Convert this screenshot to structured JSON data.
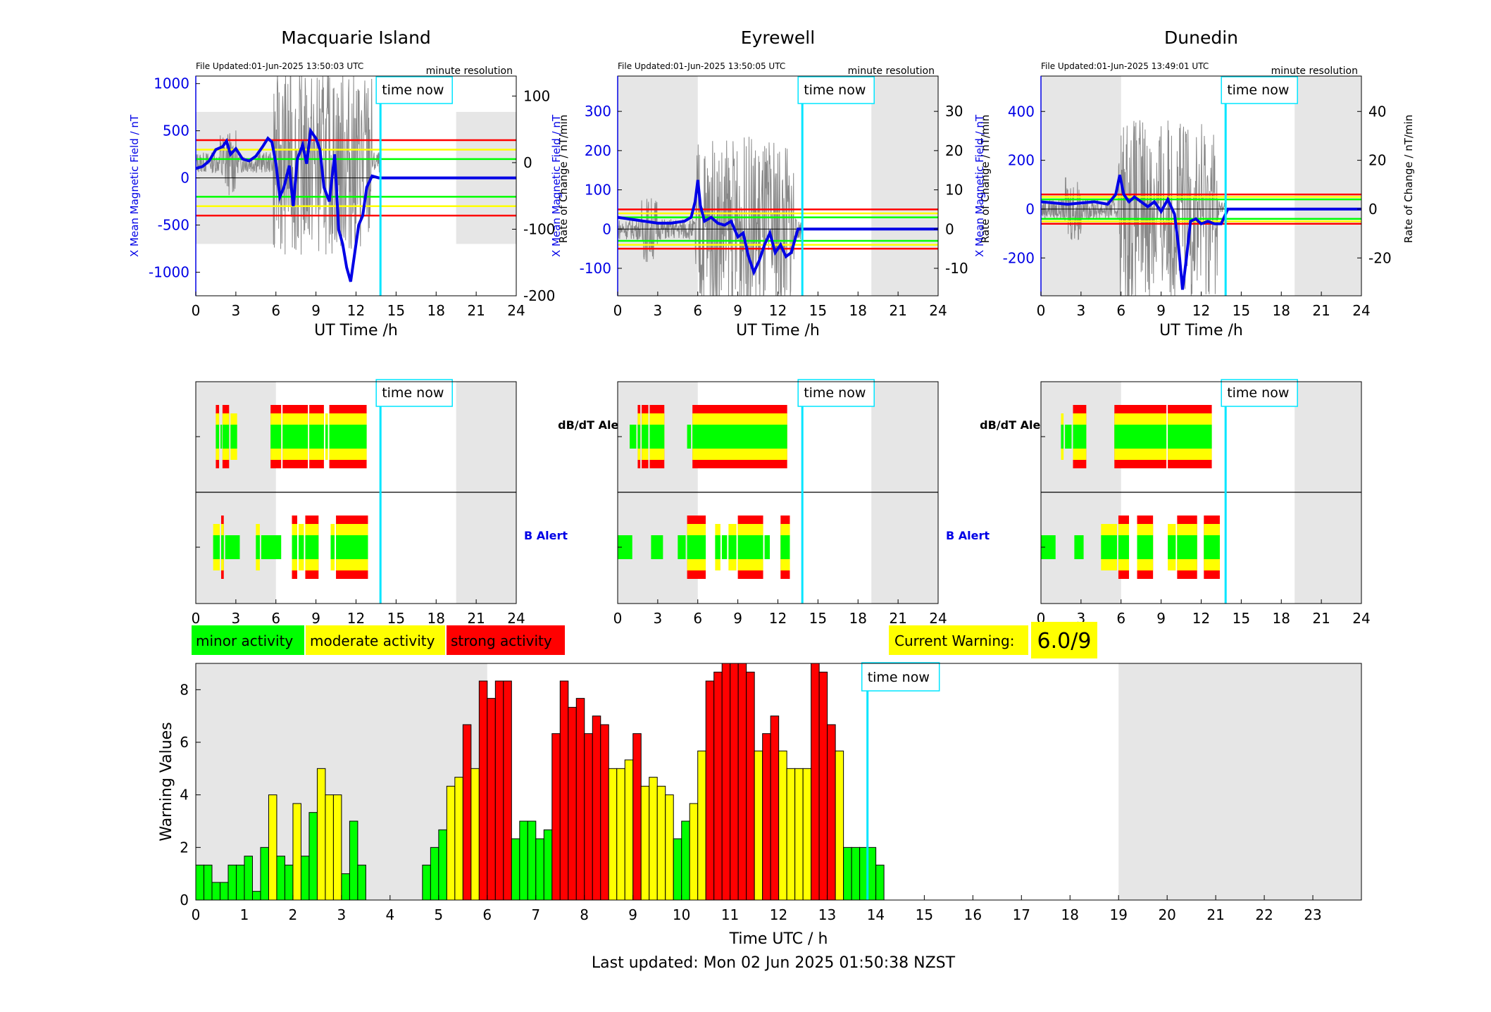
{
  "title_footer": "Last updated: Mon 02 Jun 2025 01:50:38 NZST",
  "time_now_label": "time now",
  "stations": [
    {
      "name": "Macquarie Island",
      "file_updated": "File Updated:01-Jun-2025 13:50:03 UTC",
      "resolution": "minute resolution",
      "ylabel_left": "X Mean Magnetic Field / nT",
      "ylabel_right": "Rate of Change / nT/min",
      "xlabel": "UT Time /h",
      "left_ylim": [
        -1250,
        1080
      ],
      "left_ticks": [
        -1000,
        -500,
        0,
        500,
        1000
      ],
      "right_ylim": [
        -200,
        130
      ],
      "right_ticks": [
        -200,
        -100,
        0,
        100
      ],
      "right_tick_labels": [
        "-200",
        "-100",
        "0",
        "100"
      ],
      "thresholds": {
        "green": 200,
        "yellow": 300,
        "red": 400
      },
      "dark_shade_hours": [
        [
          0,
          6
        ],
        [
          19.5,
          24
        ]
      ],
      "shade_band": [
        -700,
        700
      ],
      "x_mean_field": [
        [
          0,
          100
        ],
        [
          0.5,
          120
        ],
        [
          1,
          180
        ],
        [
          1.5,
          300
        ],
        [
          2,
          330
        ],
        [
          2.3,
          390
        ],
        [
          2.6,
          250
        ],
        [
          3,
          310
        ],
        [
          3.5,
          200
        ],
        [
          4,
          180
        ],
        [
          4.5,
          230
        ],
        [
          5,
          330
        ],
        [
          5.4,
          420
        ],
        [
          5.7,
          380
        ],
        [
          6,
          150
        ],
        [
          6.3,
          -200
        ],
        [
          6.6,
          -100
        ],
        [
          7,
          130
        ],
        [
          7.3,
          -300
        ],
        [
          7.6,
          200
        ],
        [
          8,
          350
        ],
        [
          8.3,
          150
        ],
        [
          8.6,
          500
        ],
        [
          9,
          420
        ],
        [
          9.3,
          300
        ],
        [
          9.6,
          -100
        ],
        [
          10,
          -250
        ],
        [
          10.4,
          250
        ],
        [
          10.7,
          -550
        ],
        [
          11,
          -700
        ],
        [
          11.3,
          -950
        ],
        [
          11.6,
          -1100
        ],
        [
          11.9,
          -800
        ],
        [
          12.2,
          -500
        ],
        [
          12.5,
          -400
        ],
        [
          12.8,
          -100
        ],
        [
          13.2,
          20
        ],
        [
          13.7,
          0
        ],
        [
          14,
          0
        ],
        [
          24,
          0
        ]
      ],
      "db_alert_segments": [
        [
          "1.5",
          "2",
          "red"
        ]
      ],
      "db_alert": [
        {
          "s": 1.5,
          "e": 1.85,
          "lvl": 3
        },
        {
          "s": 1.85,
          "e": 2.0,
          "lvl": 1
        },
        {
          "s": 2.0,
          "e": 2.6,
          "lvl": 3
        },
        {
          "s": 2.6,
          "e": 3.2,
          "lvl": 2
        },
        {
          "s": 5.6,
          "e": 6.5,
          "lvl": 3
        },
        {
          "s": 6.5,
          "e": 8.5,
          "lvl": 3
        },
        {
          "s": 8.5,
          "e": 9.7,
          "lvl": 3
        },
        {
          "s": 9.7,
          "e": 10.0,
          "lvl": 2
        },
        {
          "s": 10.0,
          "e": 12.9,
          "lvl": 3
        }
      ],
      "b_alert": [
        {
          "s": 1.3,
          "e": 1.9,
          "lvl": 2
        },
        {
          "s": 1.9,
          "e": 2.2,
          "lvl": 3
        },
        {
          "s": 2.2,
          "e": 3.4,
          "lvl": 1
        },
        {
          "s": 4.5,
          "e": 4.9,
          "lvl": 2
        },
        {
          "s": 4.9,
          "e": 6.5,
          "lvl": 1
        },
        {
          "s": 7.2,
          "e": 7.7,
          "lvl": 3
        },
        {
          "s": 7.7,
          "e": 8.2,
          "lvl": 2
        },
        {
          "s": 8.2,
          "e": 9.3,
          "lvl": 3
        },
        {
          "s": 10.1,
          "e": 10.5,
          "lvl": 2
        },
        {
          "s": 10.5,
          "e": 13.0,
          "lvl": 3
        }
      ]
    },
    {
      "name": "Eyrewell",
      "file_updated": "File Updated:01-Jun-2025 13:50:05 UTC",
      "resolution": "minute resolution",
      "ylabel_left": "X Mean Magnetic Field / nT",
      "ylabel_right": "Rate of Change / nT/min",
      "xlabel": "UT Time /h",
      "left_ylim": [
        -170,
        390
      ],
      "left_ticks": [
        -100,
        0,
        100,
        200,
        300
      ],
      "right_ylim": [
        -17,
        39
      ],
      "right_ticks": [
        -10,
        0,
        10,
        20,
        30
      ],
      "right_tick_labels": [
        "-10",
        "0",
        "10",
        "20",
        "30"
      ],
      "thresholds": {
        "green": 30,
        "yellow": 40,
        "red": 50
      },
      "dark_shade_hours": [
        [
          0,
          6
        ],
        [
          19,
          24
        ]
      ],
      "shade_band": [
        -170,
        390
      ],
      "x_mean_field": [
        [
          0,
          30
        ],
        [
          1,
          25
        ],
        [
          2,
          20
        ],
        [
          3,
          15
        ],
        [
          4,
          15
        ],
        [
          5,
          20
        ],
        [
          5.5,
          30
        ],
        [
          5.8,
          70
        ],
        [
          6,
          125
        ],
        [
          6.2,
          60
        ],
        [
          6.5,
          20
        ],
        [
          7,
          30
        ],
        [
          7.5,
          15
        ],
        [
          8,
          10
        ],
        [
          8.5,
          20
        ],
        [
          9,
          -20
        ],
        [
          9.4,
          -10
        ],
        [
          9.8,
          -70
        ],
        [
          10.2,
          -110
        ],
        [
          10.6,
          -80
        ],
        [
          11,
          -40
        ],
        [
          11.4,
          -10
        ],
        [
          11.8,
          -60
        ],
        [
          12.2,
          -40
        ],
        [
          12.6,
          -70
        ],
        [
          13,
          -60
        ],
        [
          13.5,
          0
        ],
        [
          14,
          0
        ],
        [
          24,
          0
        ]
      ],
      "db_alert": [
        {
          "s": 1.5,
          "e": 1.8,
          "lvl": 3
        },
        {
          "s": 1.8,
          "e": 2.4,
          "lvl": 3
        },
        {
          "s": 2.4,
          "e": 3.6,
          "lvl": 3
        },
        {
          "s": 5.2,
          "e": 5.6,
          "lvl": 1
        },
        {
          "s": 5.6,
          "e": 12.8,
          "lvl": 3
        },
        {
          "s": 0.9,
          "e": 1.5,
          "lvl": 1
        }
      ],
      "b_alert": [
        {
          "s": 0.0,
          "e": 1.2,
          "lvl": 1
        },
        {
          "s": 2.5,
          "e": 3.5,
          "lvl": 1
        },
        {
          "s": 4.5,
          "e": 5.2,
          "lvl": 1
        },
        {
          "s": 5.2,
          "e": 6.7,
          "lvl": 3
        },
        {
          "s": 7.3,
          "e": 7.8,
          "lvl": 2
        },
        {
          "s": 7.8,
          "e": 8.3,
          "lvl": 1
        },
        {
          "s": 8.3,
          "e": 9.0,
          "lvl": 2
        },
        {
          "s": 9.0,
          "e": 11.0,
          "lvl": 3
        },
        {
          "s": 11.0,
          "e": 11.5,
          "lvl": 1
        },
        {
          "s": 12.2,
          "e": 13.0,
          "lvl": 3
        }
      ]
    },
    {
      "name": "Dunedin",
      "file_updated": "File Updated:01-Jun-2025 13:49:01 UTC",
      "resolution": "minute resolution",
      "ylabel_left": "X Mean Magnetic Field / nT",
      "ylabel_right": "Rate of Change / nT/min",
      "xlabel": "UT Time /h",
      "left_ylim": [
        -355,
        545
      ],
      "left_ticks": [
        -200,
        0,
        200,
        400
      ],
      "right_ylim": [
        -35.5,
        54.5
      ],
      "right_ticks": [
        -20,
        0,
        20,
        40
      ],
      "right_tick_labels": [
        "-20",
        "0",
        "20",
        "40"
      ],
      "thresholds": {
        "green": 40,
        "yellow": 50,
        "red": 60
      },
      "dark_shade_hours": [
        [
          0,
          6
        ],
        [
          19,
          24
        ]
      ],
      "shade_band": [
        -355,
        545
      ],
      "x_mean_field": [
        [
          0,
          30
        ],
        [
          1,
          25
        ],
        [
          2,
          20
        ],
        [
          3,
          25
        ],
        [
          4,
          30
        ],
        [
          5,
          20
        ],
        [
          5.6,
          60
        ],
        [
          5.9,
          140
        ],
        [
          6.2,
          60
        ],
        [
          6.6,
          30
        ],
        [
          7,
          50
        ],
        [
          7.5,
          30
        ],
        [
          8,
          10
        ],
        [
          8.5,
          30
        ],
        [
          9,
          -10
        ],
        [
          9.5,
          40
        ],
        [
          10,
          -20
        ],
        [
          10.3,
          -150
        ],
        [
          10.6,
          -330
        ],
        [
          10.9,
          -200
        ],
        [
          11.2,
          -50
        ],
        [
          11.6,
          -40
        ],
        [
          12,
          -60
        ],
        [
          12.5,
          -50
        ],
        [
          13,
          -60
        ],
        [
          13.5,
          -60
        ],
        [
          14,
          0
        ],
        [
          24,
          0
        ]
      ],
      "db_alert": [
        {
          "s": 1.5,
          "e": 1.8,
          "lvl": 2
        },
        {
          "s": 1.8,
          "e": 2.4,
          "lvl": 1
        },
        {
          "s": 2.4,
          "e": 3.5,
          "lvl": 3
        },
        {
          "s": 5.5,
          "e": 9.5,
          "lvl": 3
        },
        {
          "s": 9.5,
          "e": 12.9,
          "lvl": 3
        }
      ],
      "b_alert": [
        {
          "s": 0.0,
          "e": 1.2,
          "lvl": 1
        },
        {
          "s": 2.5,
          "e": 3.3,
          "lvl": 1
        },
        {
          "s": 4.5,
          "e": 5.8,
          "lvl": 2
        },
        {
          "s": 5.8,
          "e": 6.7,
          "lvl": 3
        },
        {
          "s": 7.2,
          "e": 8.5,
          "lvl": 3
        },
        {
          "s": 9.5,
          "e": 10.2,
          "lvl": 2
        },
        {
          "s": 10.2,
          "e": 11.8,
          "lvl": 3
        },
        {
          "s": 12.2,
          "e": 13.5,
          "lvl": 3
        }
      ]
    }
  ],
  "alert_labels": {
    "db": "dB/dT Alert",
    "b": "B Alert"
  },
  "legend": {
    "minor": "minor activity",
    "moderate": "moderate activity",
    "strong": "strong activity"
  },
  "current_warning": {
    "label": "Current Warning:",
    "value": "6.0/9"
  },
  "colors": {
    "minor": "#00ff00",
    "moderate": "#ffff00",
    "strong": "#ff0000",
    "now": "#00e5ff",
    "field": "#0000e6",
    "shade": "#e6e6e6"
  },
  "chart_data": {
    "type": "bar",
    "xlabel": "Time UTC / h",
    "ylabel": "Warning Values",
    "xlim": [
      0,
      24
    ],
    "ylim": [
      0,
      9
    ],
    "x_ticks": [
      0,
      1,
      2,
      3,
      4,
      5,
      6,
      7,
      8,
      9,
      10,
      11,
      12,
      13,
      14,
      15,
      16,
      17,
      18,
      19,
      20,
      21,
      22,
      23
    ],
    "y_ticks": [
      0,
      2,
      4,
      6,
      8
    ],
    "bar_width_h": 0.1667,
    "time_now": 13.83,
    "shade_hours": [
      [
        0,
        6
      ],
      [
        19,
        24
      ]
    ],
    "values": [
      1.33,
      1.33,
      0.67,
      0.67,
      1.33,
      1.33,
      1.67,
      0.33,
      2.0,
      4.0,
      1.67,
      1.33,
      3.67,
      1.67,
      3.33,
      5.0,
      4.0,
      4.0,
      1.0,
      3.0,
      1.33,
      0,
      0,
      0,
      0,
      0,
      0,
      0,
      1.33,
      2.0,
      2.67,
      4.33,
      4.67,
      6.67,
      5.0,
      8.33,
      7.67,
      8.33,
      8.33,
      2.33,
      3.0,
      3.0,
      2.33,
      2.67,
      6.33,
      8.33,
      7.33,
      7.67,
      6.33,
      7.0,
      6.67,
      5.0,
      5.0,
      5.33,
      6.33,
      4.33,
      4.67,
      4.33,
      4.0,
      2.33,
      3.0,
      3.67,
      5.67,
      8.33,
      8.67,
      9.0,
      9.0,
      9.0,
      8.67,
      5.67,
      6.33,
      7.0,
      5.67,
      5.0,
      5.0,
      5.0,
      9.0,
      8.67,
      6.67,
      5.67,
      2.0,
      2.0,
      2.0,
      2.0,
      1.33
    ]
  }
}
